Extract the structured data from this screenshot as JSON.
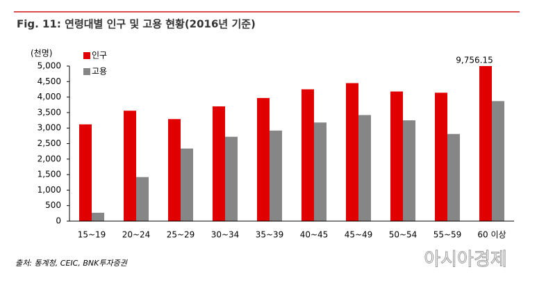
{
  "chart_data": {
    "type": "bar",
    "title": "Fig. 11: 연령대별 인구 및 고용 현황(2016년 기준)",
    "y_label": "(천명)",
    "categories": [
      "15~19",
      "20~24",
      "25~29",
      "30~34",
      "35~39",
      "40~45",
      "45~49",
      "50~54",
      "55~59",
      "60 이상"
    ],
    "series": [
      {
        "name": "인구",
        "color": "#e00000",
        "values": [
          3120,
          3560,
          3290,
          3700,
          3970,
          4250,
          4450,
          4180,
          4140,
          9756.15
        ],
        "value_labels": [
          null,
          null,
          null,
          null,
          null,
          null,
          null,
          null,
          null,
          "9,756.15"
        ]
      },
      {
        "name": "고용",
        "color": "#868686",
        "values": [
          270,
          1420,
          2340,
          2720,
          2920,
          3180,
          3420,
          3250,
          2810,
          3870
        ]
      }
    ],
    "ylim": [
      0,
      5000
    ],
    "yticks": [
      0,
      500,
      {
        "value": 1000,
        "label": "1,000"
      },
      {
        "value": 1500,
        "label": "1,500"
      },
      {
        "value": 2000,
        "label": "2,000"
      },
      {
        "value": 2500,
        "label": "2,500"
      },
      {
        "value": 3000,
        "label": "3,000"
      },
      {
        "value": 3500,
        "label": "3,500"
      },
      {
        "value": 4000,
        "label": "4,000"
      },
      {
        "value": 4500,
        "label": "4,500"
      },
      {
        "value": 5000,
        "label": "5,000"
      }
    ],
    "grid": false,
    "source": "출처: 통계청, CEIC, BNK투자증권",
    "watermark": "아시아경제"
  }
}
